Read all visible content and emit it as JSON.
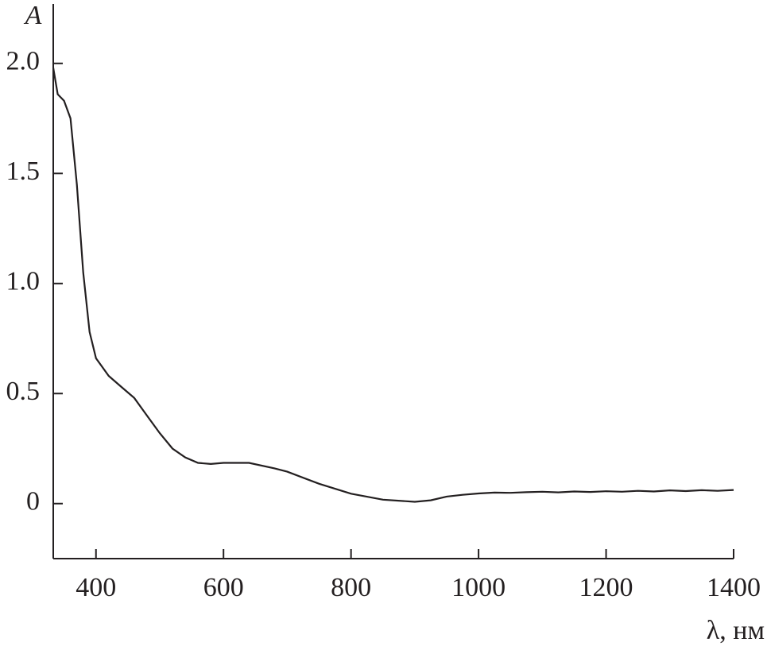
{
  "chart_data": {
    "type": "line",
    "x_label": "λ, нм",
    "y_label": "A",
    "xlim": [
      333,
      1400
    ],
    "ylim": [
      -0.25,
      2.27
    ],
    "xticks": [
      400,
      600,
      800,
      1000,
      1200,
      1400
    ],
    "yticks": [
      0,
      {
        "value": 0.5,
        "label": "0.5"
      },
      {
        "value": 1.0,
        "label": "1.0"
      },
      {
        "value": 1.5,
        "label": "1.5"
      },
      {
        "value": 2.0,
        "label": "2.0"
      }
    ],
    "series": [
      {
        "color": "#231f20",
        "x": [
          333,
          340,
          350,
          360,
          370,
          380,
          390,
          400,
          420,
          440,
          460,
          480,
          500,
          520,
          540,
          560,
          580,
          600,
          640,
          680,
          700,
          750,
          800,
          850,
          900,
          925,
          950,
          975,
          1000,
          1025,
          1050,
          1075,
          1100,
          1125,
          1150,
          1175,
          1200,
          1225,
          1250,
          1275,
          1300,
          1325,
          1350,
          1375,
          1400
        ],
        "values": [
          1.98,
          1.86,
          1.83,
          1.75,
          1.45,
          1.05,
          0.78,
          0.66,
          0.58,
          0.53,
          0.48,
          0.4,
          0.32,
          0.25,
          0.21,
          0.185,
          0.18,
          0.185,
          0.185,
          0.16,
          0.145,
          0.09,
          0.045,
          0.018,
          0.008,
          0.015,
          0.032,
          0.04,
          0.046,
          0.05,
          0.049,
          0.052,
          0.054,
          0.051,
          0.055,
          0.053,
          0.056,
          0.054,
          0.058,
          0.055,
          0.06,
          0.057,
          0.061,
          0.058,
          0.062
        ]
      }
    ]
  }
}
